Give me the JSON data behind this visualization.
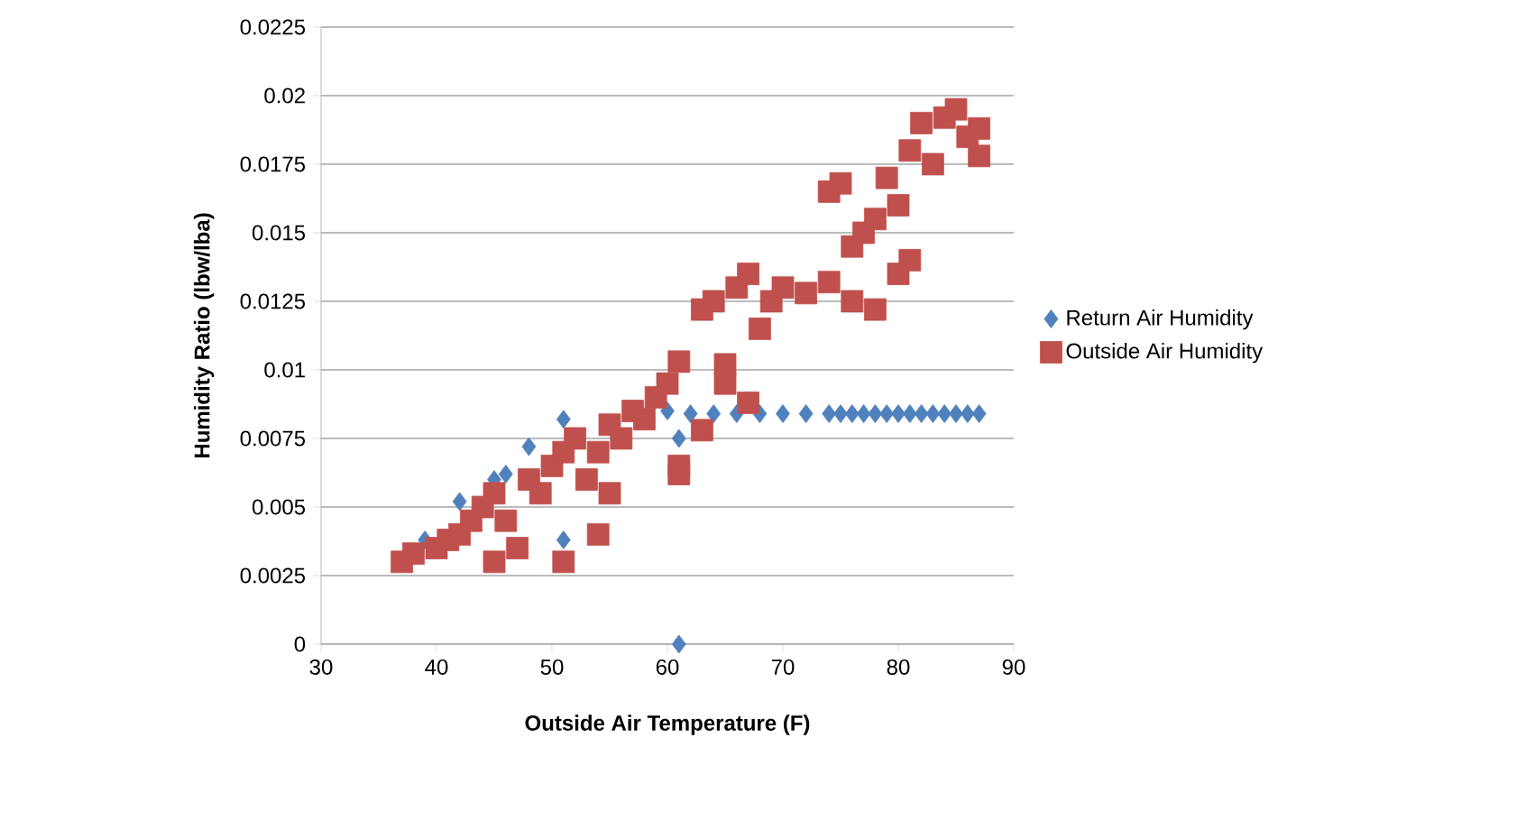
{
  "chart_data": {
    "type": "scatter",
    "xlabel": "Outside Air Temperature (F)",
    "ylabel": "Humidity Ratio (lbw/lba)",
    "xlim": [
      30,
      90
    ],
    "xticks": [
      30,
      40,
      50,
      60,
      70,
      80,
      90
    ],
    "ylim": [
      0,
      0.0225
    ],
    "yticks": [
      {
        "value": 0,
        "label": "0"
      },
      {
        "value": 0.0025,
        "label": "0.0025"
      },
      {
        "value": 0.005,
        "label": "0.005"
      },
      {
        "value": 0.0075,
        "label": "0.0075"
      },
      {
        "value": 0.01,
        "label": "0.01"
      },
      {
        "value": 0.0125,
        "label": "0.0125"
      },
      {
        "value": 0.015,
        "label": "0.015"
      },
      {
        "value": 0.0175,
        "label": "0.0175"
      },
      {
        "value": 0.02,
        "label": "0.02"
      },
      {
        "value": 0.0225,
        "label": "0.0225"
      }
    ],
    "grid": "y",
    "legend": "right",
    "series": [
      {
        "name": "Return Air Humidity",
        "color": "#4f81bd",
        "marker": "diamond",
        "x": [
          39,
          42,
          45,
          46,
          48,
          51,
          51,
          60,
          61,
          61,
          62,
          64,
          66,
          68,
          70,
          72,
          74,
          75,
          76,
          77,
          78,
          79,
          80,
          81,
          82,
          83,
          84,
          85,
          86,
          87
        ],
        "values": [
          0.0038,
          0.0052,
          0.006,
          0.0062,
          0.0072,
          0.0082,
          0.0038,
          0.0085,
          0,
          0.0075,
          0.0084,
          0.0084,
          0.0084,
          0.0084,
          0.0084,
          0.0084,
          0.0084,
          0.0084,
          0.0084,
          0.0084,
          0.0084,
          0.0084,
          0.0084,
          0.0084,
          0.0084,
          0.0084,
          0.0084,
          0.0084,
          0.0084,
          0.0084
        ]
      },
      {
        "name": "Outside Air Humidity",
        "color": "#c0504d",
        "marker": "square",
        "x": [
          37,
          38,
          40,
          41,
          42,
          43,
          44,
          45,
          45,
          46,
          47,
          48,
          49,
          50,
          51,
          51,
          52,
          53,
          54,
          54,
          55,
          55,
          56,
          57,
          58,
          59,
          60,
          61,
          61,
          61,
          63,
          63,
          64,
          65,
          65,
          66,
          67,
          67,
          68,
          69,
          70,
          72,
          74,
          74,
          75,
          76,
          76,
          77,
          78,
          78,
          79,
          80,
          80,
          81,
          81,
          82,
          83,
          84,
          85,
          86,
          87,
          87
        ],
        "values": [
          0.003,
          0.0033,
          0.0035,
          0.0038,
          0.004,
          0.0045,
          0.005,
          0.003,
          0.0055,
          0.0045,
          0.0035,
          0.006,
          0.0055,
          0.0065,
          0.003,
          0.007,
          0.0075,
          0.006,
          0.004,
          0.007,
          0.0055,
          0.008,
          0.0075,
          0.0085,
          0.0082,
          0.009,
          0.0095,
          0.0103,
          0.0065,
          0.0062,
          0.0078,
          0.0122,
          0.0125,
          0.0095,
          0.0102,
          0.013,
          0.0135,
          0.0088,
          0.0115,
          0.0125,
          0.013,
          0.0128,
          0.0132,
          0.0165,
          0.0168,
          0.0145,
          0.0125,
          0.015,
          0.0155,
          0.0122,
          0.017,
          0.0135,
          0.016,
          0.018,
          0.014,
          0.019,
          0.0175,
          0.0192,
          0.0195,
          0.0185,
          0.0178,
          0.0188
        ]
      }
    ]
  }
}
